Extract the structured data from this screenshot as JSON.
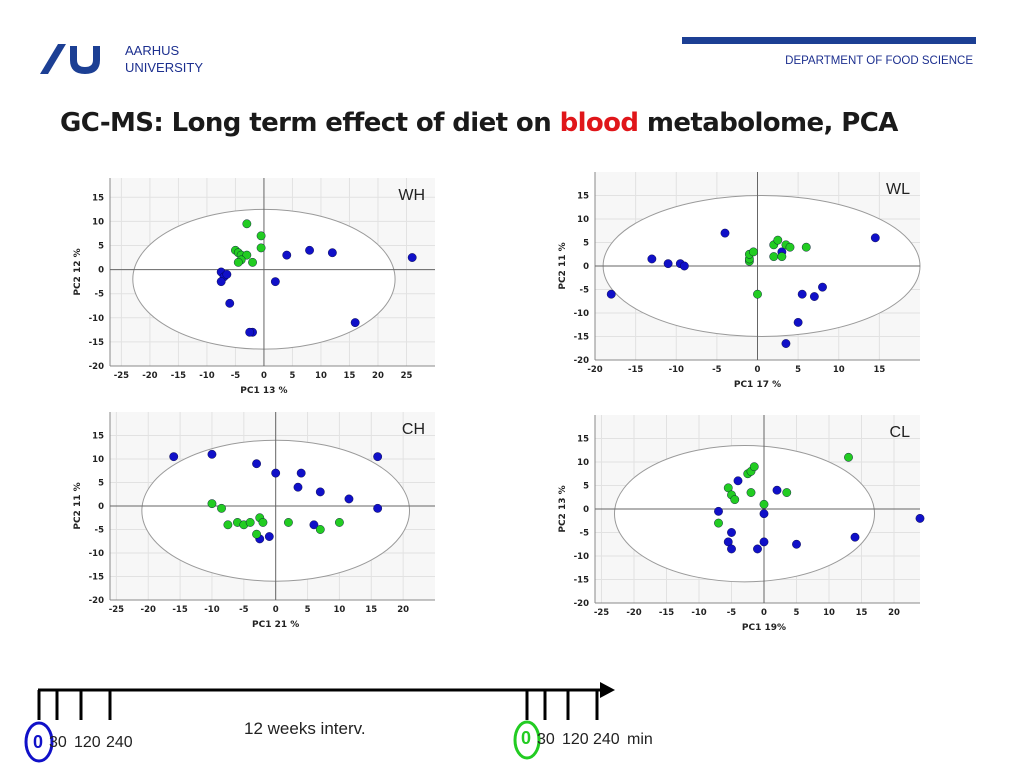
{
  "header": {
    "university": [
      "AARHUS",
      "UNIVERSITY"
    ],
    "department": "DEPARTMENT OF FOOD SCIENCE",
    "title_pre": "GC-MS: Long term effect of diet on ",
    "title_highlight": "blood",
    "title_post": " metabolome, PCA"
  },
  "colors": {
    "blue": "#1010c8",
    "green": "#22cc22",
    "accent": "#1c3f94",
    "highlight": "#e0161a"
  },
  "chart_data": [
    {
      "id": "WH",
      "type": "scatter",
      "title": "WH",
      "xlabel": "PC1 13 %",
      "ylabel": "PC2 12 %",
      "xlim": [
        -27,
        30
      ],
      "ylim": [
        -20,
        19
      ],
      "xticks": [
        -25,
        -20,
        -15,
        -10,
        -5,
        0,
        5,
        10,
        15,
        20,
        25
      ],
      "yticks": [
        -20,
        -15,
        -10,
        -5,
        0,
        5,
        10,
        15
      ],
      "ellipse": {
        "cx": 0,
        "cy": -2,
        "rx": 23,
        "ry": 14.5
      },
      "series": [
        {
          "name": "blue",
          "points": [
            [
              -7.5,
              -0.5
            ],
            [
              -7,
              -1.5
            ],
            [
              -7.5,
              -2.5
            ],
            [
              -6.5,
              -1
            ],
            [
              -6,
              -7
            ],
            [
              -2,
              -13
            ],
            [
              -2.5,
              -13
            ],
            [
              2,
              -2.5
            ],
            [
              4,
              3
            ],
            [
              8,
              4
            ],
            [
              12,
              3.5
            ],
            [
              16,
              -11
            ],
            [
              26,
              2.5
            ]
          ]
        },
        {
          "name": "green",
          "points": [
            [
              -3,
              9.5
            ],
            [
              -5,
              4
            ],
            [
              -4.5,
              3.5
            ],
            [
              -4,
              3
            ],
            [
              -3,
              3
            ],
            [
              -4,
              2
            ],
            [
              -4.5,
              1.5
            ],
            [
              -2,
              1.5
            ],
            [
              -0.5,
              7
            ],
            [
              -0.5,
              4.5
            ]
          ]
        }
      ]
    },
    {
      "id": "WL",
      "type": "scatter",
      "title": "WL",
      "xlabel": "PC1 17 %",
      "ylabel": "PC2 11 %",
      "xlim": [
        -20,
        20
      ],
      "ylim": [
        -20,
        20
      ],
      "xticks": [
        -20,
        -15,
        -10,
        -5,
        0,
        5,
        10,
        15
      ],
      "yticks": [
        -20,
        -15,
        -10,
        -5,
        0,
        5,
        10,
        15
      ],
      "ellipse": {
        "cx": 0.5,
        "cy": 0,
        "rx": 19.5,
        "ry": 15
      },
      "series": [
        {
          "name": "blue",
          "points": [
            [
              -18,
              -6
            ],
            [
              -13,
              1.5
            ],
            [
              -11,
              0.5
            ],
            [
              -9.5,
              0.5
            ],
            [
              -9,
              0
            ],
            [
              -4,
              7
            ],
            [
              3,
              3
            ],
            [
              5.5,
              -6
            ],
            [
              7,
              -6.5
            ],
            [
              8,
              -4.5
            ],
            [
              5,
              -12
            ],
            [
              3.5,
              -16.5
            ],
            [
              14.5,
              6
            ]
          ]
        },
        {
          "name": "green",
          "points": [
            [
              -1,
              1
            ],
            [
              -1,
              1.5
            ],
            [
              -1,
              2.5
            ],
            [
              -0.5,
              3
            ],
            [
              2,
              4.5
            ],
            [
              2.5,
              5.5
            ],
            [
              3.5,
              4.5
            ],
            [
              4,
              4
            ],
            [
              6,
              4
            ],
            [
              2,
              2
            ],
            [
              3,
              2
            ],
            [
              0,
              -6
            ]
          ]
        }
      ]
    },
    {
      "id": "CH",
      "type": "scatter",
      "title": "CH",
      "xlabel": "PC1 21 %",
      "ylabel": "PC2 11 %",
      "xlim": [
        -26,
        25
      ],
      "ylim": [
        -20,
        20
      ],
      "xticks": [
        -25,
        -20,
        -15,
        -10,
        -5,
        0,
        5,
        10,
        15,
        20
      ],
      "yticks": [
        -20,
        -15,
        -10,
        -5,
        0,
        5,
        10,
        15
      ],
      "ellipse": {
        "cx": 0,
        "cy": -1,
        "rx": 21,
        "ry": 15
      },
      "series": [
        {
          "name": "blue",
          "points": [
            [
              -16,
              10.5
            ],
            [
              -10,
              11
            ],
            [
              -3,
              9
            ],
            [
              0,
              7
            ],
            [
              4,
              7
            ],
            [
              3.5,
              4
            ],
            [
              7,
              3
            ],
            [
              11.5,
              1.5
            ],
            [
              16,
              10.5
            ],
            [
              16,
              -0.5
            ],
            [
              6,
              -4
            ],
            [
              -2.5,
              -7
            ],
            [
              -1,
              -6.5
            ]
          ]
        },
        {
          "name": "green",
          "points": [
            [
              -10,
              0.5
            ],
            [
              -8.5,
              -0.5
            ],
            [
              -7.5,
              -4
            ],
            [
              -6,
              -3.5
            ],
            [
              -5,
              -4
            ],
            [
              -4,
              -3.5
            ],
            [
              -2.5,
              -2.5
            ],
            [
              -2,
              -3.5
            ],
            [
              -3,
              -6
            ],
            [
              2,
              -3.5
            ],
            [
              7,
              -5
            ],
            [
              10,
              -3.5
            ]
          ]
        }
      ]
    },
    {
      "id": "CL",
      "type": "scatter",
      "title": "CL",
      "xlabel": "PC1 19%",
      "ylabel": "PC2 13 %",
      "xlim": [
        -26,
        24
      ],
      "ylim": [
        -20,
        20
      ],
      "xticks": [
        -25,
        -20,
        -15,
        -10,
        -5,
        0,
        5,
        10,
        15,
        20
      ],
      "yticks": [
        -20,
        -15,
        -10,
        -5,
        0,
        5,
        10,
        15
      ],
      "ellipse": {
        "cx": -3,
        "cy": -1,
        "rx": 20,
        "ry": 14.5
      },
      "series": [
        {
          "name": "blue",
          "points": [
            [
              -7,
              -0.5
            ],
            [
              -4,
              6
            ],
            [
              -5,
              -5
            ],
            [
              -5.5,
              -7
            ],
            [
              -5,
              -8.5
            ],
            [
              -1,
              -8.5
            ],
            [
              0,
              -7
            ],
            [
              0,
              -1
            ],
            [
              2,
              4
            ],
            [
              5,
              -7.5
            ],
            [
              14,
              -6
            ],
            [
              24,
              -2
            ]
          ]
        },
        {
          "name": "green",
          "points": [
            [
              -7,
              -3
            ],
            [
              -5.5,
              4.5
            ],
            [
              -5,
              3
            ],
            [
              -4.5,
              2
            ],
            [
              -2.5,
              7.5
            ],
            [
              -2,
              8
            ],
            [
              -1.5,
              9
            ],
            [
              -2,
              3.5
            ],
            [
              0,
              1
            ],
            [
              3.5,
              3.5
            ],
            [
              13,
              11
            ]
          ]
        }
      ]
    }
  ],
  "timeline": {
    "first_group": [
      "0",
      "30",
      "120",
      "240"
    ],
    "interval_label": "12 weeks interv.",
    "second_group": [
      "0",
      "30",
      "120",
      "240"
    ],
    "unit": "min"
  }
}
